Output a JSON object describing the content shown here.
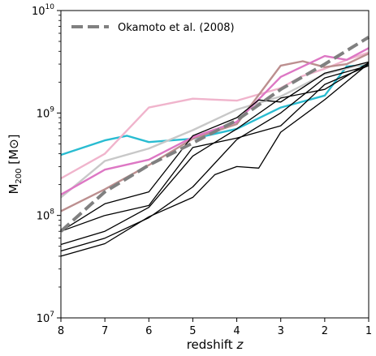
{
  "chart_data": {
    "type": "line",
    "xlabel": "redshift z",
    "ylabel": "M200 [M⊙]",
    "xlim": [
      8,
      1
    ],
    "ylim": [
      10000000,
      10000000000
    ],
    "y_scale": "log",
    "grid": false,
    "legend_position": "top-left",
    "x_ticks": [
      "8",
      "7",
      "6",
      "5",
      "4",
      "3",
      "2",
      "1"
    ],
    "y_ticks": [
      {
        "value": 10000000,
        "base": "10",
        "exp": "7"
      },
      {
        "value": 100000000,
        "base": "10",
        "exp": "8"
      },
      {
        "value": 1000000000,
        "base": "10",
        "exp": "9"
      },
      {
        "value": 10000000000,
        "base": "10",
        "exp": "10"
      }
    ],
    "reference": {
      "name": "Okamoto et al. (2008)",
      "color": "#808080",
      "x": [
        8,
        7,
        6,
        5,
        4,
        3,
        2,
        1
      ],
      "y": [
        70000000,
        170000000,
        310000000,
        510000000,
        850000000,
        1700000000,
        3000000000,
        5500000000
      ]
    },
    "series": [
      {
        "color": "#29bcd1",
        "x": [
          8,
          7,
          6.5,
          6,
          5,
          4,
          3,
          2,
          1.5,
          1
        ],
        "y": [
          390000000,
          540000000,
          600000000,
          520000000,
          560000000,
          700000000,
          1130000000,
          1480000000,
          2850000000,
          2950000000
        ]
      },
      {
        "color": "#f0b4cc",
        "x": [
          8,
          7,
          6,
          5,
          4,
          3,
          2.5,
          2,
          1.5,
          1
        ],
        "y": [
          230000000,
          400000000,
          1130000000,
          1380000000,
          1320000000,
          1750000000,
          2300000000,
          2700000000,
          3300000000,
          3900000000
        ]
      },
      {
        "color": "#c8c8c8",
        "x": [
          8,
          7,
          6,
          5,
          4,
          3,
          2,
          1
        ],
        "y": [
          150000000,
          340000000,
          450000000,
          680000000,
          1080000000,
          1450000000,
          2400000000,
          3100000000
        ]
      },
      {
        "color": "#bc8f8f",
        "x": [
          8,
          7,
          6,
          5,
          4,
          3,
          2.5,
          2,
          1.5,
          1
        ],
        "y": [
          110000000,
          180000000,
          310000000,
          560000000,
          780000000,
          2900000000,
          3200000000,
          2800000000,
          3000000000,
          3800000000
        ]
      },
      {
        "color": "#dd77c4",
        "x": [
          8,
          7,
          6,
          5,
          4,
          3,
          2,
          1.5,
          1
        ],
        "y": [
          160000000,
          280000000,
          350000000,
          580000000,
          820000000,
          2250000000,
          3600000000,
          3300000000,
          4300000000
        ]
      },
      {
        "color": "#000000",
        "x": [
          8,
          7,
          6,
          5,
          4,
          3.5,
          3,
          2,
          1
        ],
        "y": [
          70000000,
          130000000,
          170000000,
          600000000,
          900000000,
          1340000000,
          1280000000,
          2450000000,
          3150000000
        ]
      },
      {
        "color": "#000000",
        "x": [
          8,
          7,
          6,
          5,
          4,
          3,
          2,
          1
        ],
        "y": [
          70000000,
          100000000,
          125000000,
          460000000,
          570000000,
          750000000,
          1900000000,
          2900000000
        ]
      },
      {
        "color": "#000000",
        "x": [
          8,
          7,
          6,
          5,
          4,
          3,
          2,
          1
        ],
        "y": [
          52000000,
          70000000,
          120000000,
          380000000,
          700000000,
          1400000000,
          1700000000,
          3100000000
        ]
      },
      {
        "color": "#000000",
        "x": [
          8,
          7,
          6,
          5,
          4,
          3,
          2,
          1
        ],
        "y": [
          45000000,
          60000000,
          95000000,
          190000000,
          550000000,
          1000000000,
          2200000000,
          2900000000
        ]
      },
      {
        "color": "#000000",
        "x": [
          8,
          7,
          6,
          5,
          4.5,
          4,
          3.5,
          3,
          2,
          1
        ],
        "y": [
          40000000,
          53000000,
          97000000,
          150000000,
          250000000,
          300000000,
          290000000,
          650000000,
          1350000000,
          3050000000
        ]
      }
    ]
  }
}
